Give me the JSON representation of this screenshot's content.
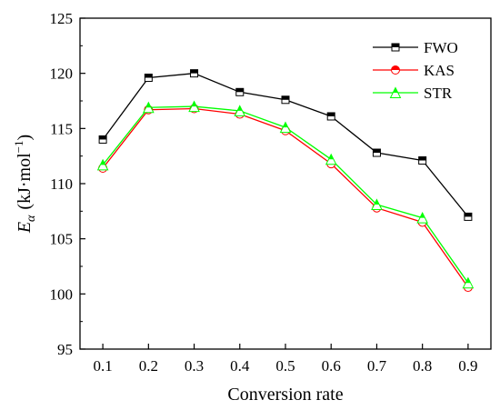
{
  "chart_data": {
    "type": "line",
    "xlabel": "Conversion rate",
    "ylabel_main": "E",
    "ylabel_sub": "α",
    "ylabel_unit": "(kJ·mol",
    "ylabel_exp": "−1",
    "ylabel_close": ")",
    "x": [
      0.1,
      0.2,
      0.3,
      0.4,
      0.5,
      0.6,
      0.7,
      0.8,
      0.9
    ],
    "x_tick_labels": [
      "0.1",
      "0.2",
      "0.3",
      "0.4",
      "0.5",
      "0.6",
      "0.7",
      "0.8",
      "0.9"
    ],
    "xlim": [
      0.05,
      0.95
    ],
    "ylim": [
      95,
      125
    ],
    "y_ticks": [
      95,
      100,
      105,
      110,
      115,
      120,
      125
    ],
    "y_tick_labels": [
      "95",
      "100",
      "105",
      "110",
      "115",
      "120",
      "125"
    ],
    "grid": false,
    "legend_position": "top-right",
    "series": [
      {
        "name": "FWO",
        "color": "#000000",
        "marker": "half-filled-square",
        "values": [
          114.0,
          119.6,
          120.0,
          118.3,
          117.6,
          116.1,
          112.8,
          112.1,
          107.0
        ]
      },
      {
        "name": "KAS",
        "color": "#ff0000",
        "marker": "half-filled-circle",
        "values": [
          111.4,
          116.7,
          116.8,
          116.3,
          114.8,
          111.8,
          107.8,
          106.5,
          100.6
        ]
      },
      {
        "name": "STR",
        "color": "#00ff00",
        "marker": "half-filled-triangle",
        "values": [
          111.7,
          116.9,
          117.0,
          116.6,
          115.1,
          112.2,
          108.1,
          106.9,
          101.0
        ]
      }
    ]
  }
}
